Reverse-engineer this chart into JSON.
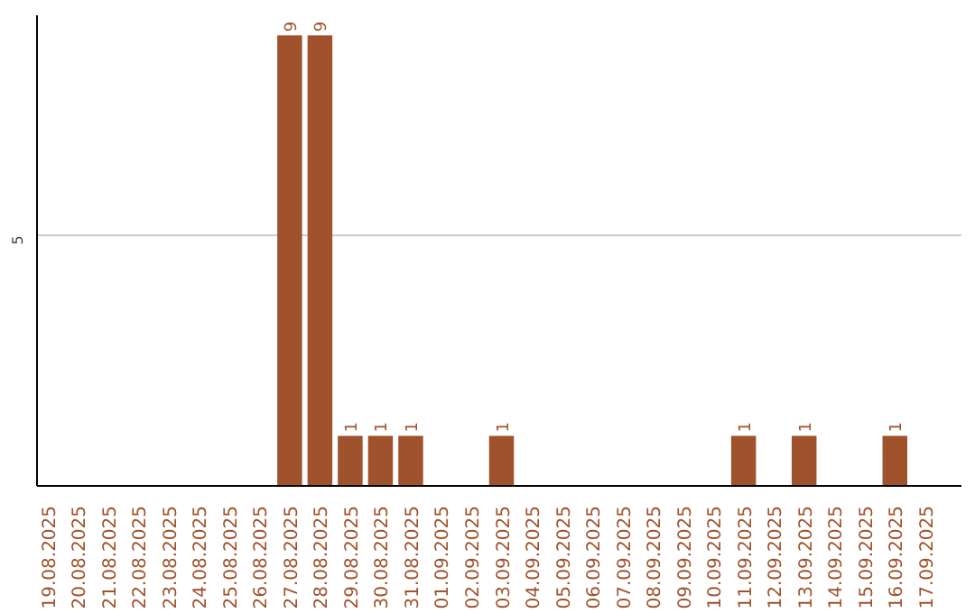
{
  "chart_data": {
    "type": "bar",
    "categories": [
      "19.08.2025",
      "20.08.2025",
      "21.08.2025",
      "22.08.2025",
      "23.08.2025",
      "24.08.2025",
      "25.08.2025",
      "26.08.2025",
      "27.08.2025",
      "28.08.2025",
      "29.08.2025",
      "30.08.2025",
      "31.08.2025",
      "01.09.2025",
      "02.09.2025",
      "03.09.2025",
      "04.09.2025",
      "05.09.2025",
      "06.09.2025",
      "07.09.2025",
      "08.09.2025",
      "09.09.2025",
      "10.09.2025",
      "11.09.2025",
      "12.09.2025",
      "13.09.2025",
      "14.09.2025",
      "15.09.2025",
      "16.09.2025",
      "17.09.2025"
    ],
    "values": [
      0,
      0,
      0,
      0,
      0,
      0,
      0,
      0,
      9,
      9,
      1,
      1,
      1,
      0,
      0,
      1,
      0,
      0,
      0,
      0,
      0,
      0,
      0,
      1,
      0,
      1,
      0,
      0,
      1,
      0
    ],
    "value_labels": [
      null,
      null,
      null,
      null,
      null,
      null,
      null,
      null,
      "9",
      "9",
      "1",
      "1",
      "1",
      null,
      null,
      "1",
      null,
      null,
      null,
      null,
      null,
      null,
      null,
      "1",
      null,
      "1",
      null,
      null,
      "1",
      null
    ],
    "color": "#a0522d",
    "ylim": [
      0,
      9.4
    ],
    "yticks": [
      5
    ],
    "grid": "y"
  }
}
